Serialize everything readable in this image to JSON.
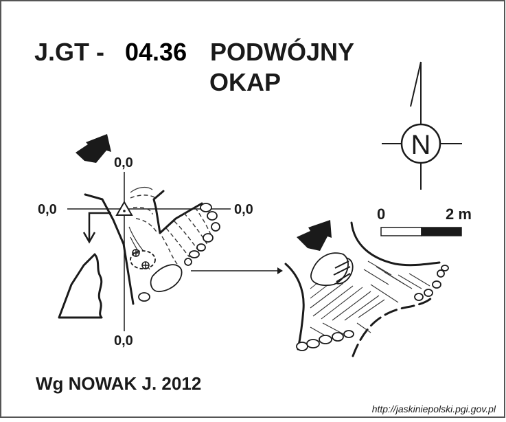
{
  "header": {
    "code_prefix": "J.GT -",
    "code_number": "04.36",
    "name_line1": "PODWÓJNY",
    "name_line2": "OKAP"
  },
  "section": {
    "label_top": "0,0",
    "label_left": "0,0",
    "label_right": "0,0",
    "label_bottom": "0,0"
  },
  "scale": {
    "start_label": "0",
    "end_label": "2 m"
  },
  "compass": {
    "letter": "N"
  },
  "credit": "Wg NOWAK J. 2012",
  "source_url": "http://jaskiniepolski.pgi.gov.pl",
  "colors": {
    "ink": "#1a1a1a",
    "background": "#ffffff",
    "border": "#555555"
  }
}
